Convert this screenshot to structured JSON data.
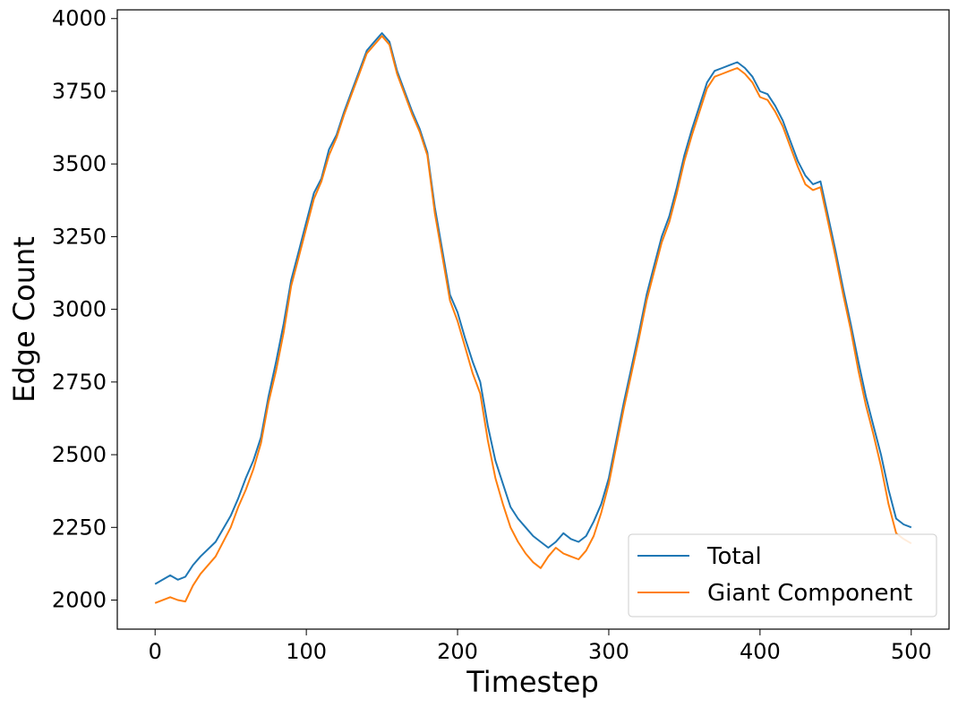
{
  "chart_data": {
    "type": "line",
    "title": "",
    "xlabel": "Timestep",
    "ylabel": "Edge Count",
    "xlim": [
      -25,
      525
    ],
    "ylim": [
      1900,
      4030
    ],
    "xticks": [
      0,
      100,
      200,
      300,
      400,
      500
    ],
    "yticks": [
      2000,
      2250,
      2500,
      2750,
      3000,
      3250,
      3500,
      3750,
      4000
    ],
    "grid": false,
    "legend": {
      "position": "bottom-right"
    },
    "series": [
      {
        "name": "Total",
        "color": "#1f77b4",
        "x": [
          0,
          10,
          15,
          20,
          25,
          30,
          40,
          50,
          55,
          60,
          65,
          70,
          75,
          80,
          85,
          90,
          95,
          100,
          105,
          110,
          115,
          120,
          125,
          130,
          135,
          140,
          145,
          150,
          155,
          160,
          165,
          170,
          175,
          180,
          185,
          190,
          195,
          200,
          205,
          210,
          215,
          220,
          225,
          230,
          235,
          240,
          245,
          250,
          255,
          260,
          265,
          270,
          275,
          280,
          285,
          290,
          295,
          300,
          305,
          310,
          315,
          320,
          325,
          330,
          335,
          340,
          345,
          350,
          355,
          360,
          365,
          370,
          375,
          380,
          385,
          390,
          395,
          400,
          405,
          410,
          415,
          420,
          425,
          430,
          435,
          440,
          445,
          450,
          455,
          460,
          465,
          470,
          475,
          480,
          485,
          490,
          495,
          500
        ],
        "values": [
          2055,
          2085,
          2070,
          2080,
          2120,
          2150,
          2200,
          2290,
          2350,
          2420,
          2480,
          2560,
          2700,
          2820,
          2950,
          3100,
          3200,
          3300,
          3400,
          3450,
          3550,
          3600,
          3680,
          3750,
          3820,
          3890,
          3920,
          3950,
          3920,
          3820,
          3750,
          3680,
          3620,
          3540,
          3350,
          3200,
          3050,
          2990,
          2900,
          2820,
          2750,
          2600,
          2480,
          2400,
          2320,
          2280,
          2250,
          2220,
          2200,
          2180,
          2200,
          2230,
          2210,
          2200,
          2220,
          2270,
          2330,
          2420,
          2550,
          2680,
          2800,
          2920,
          3050,
          3150,
          3250,
          3320,
          3420,
          3530,
          3620,
          3700,
          3780,
          3820,
          3830,
          3840,
          3850,
          3830,
          3800,
          3750,
          3740,
          3700,
          3650,
          3580,
          3510,
          3460,
          3430,
          3440,
          3320,
          3200,
          3070,
          2950,
          2820,
          2700,
          2600,
          2500,
          2380,
          2280,
          2260,
          2250
        ]
      },
      {
        "name": "Giant Component",
        "color": "#ff7f0e",
        "x": [
          0,
          10,
          15,
          20,
          25,
          30,
          40,
          50,
          55,
          60,
          65,
          70,
          75,
          80,
          85,
          90,
          95,
          100,
          105,
          110,
          115,
          120,
          125,
          130,
          135,
          140,
          145,
          150,
          155,
          160,
          165,
          170,
          175,
          180,
          185,
          190,
          195,
          200,
          205,
          210,
          215,
          220,
          225,
          230,
          235,
          240,
          245,
          250,
          255,
          260,
          265,
          270,
          275,
          280,
          285,
          290,
          295,
          300,
          305,
          310,
          315,
          320,
          325,
          330,
          335,
          340,
          345,
          350,
          355,
          360,
          365,
          370,
          375,
          380,
          385,
          390,
          395,
          400,
          405,
          410,
          415,
          420,
          425,
          430,
          435,
          440,
          445,
          450,
          455,
          460,
          465,
          470,
          475,
          480,
          485,
          490,
          495,
          500
        ],
        "values": [
          1990,
          2010,
          2000,
          1995,
          2050,
          2090,
          2150,
          2250,
          2320,
          2380,
          2450,
          2540,
          2680,
          2790,
          2920,
          3080,
          3180,
          3280,
          3380,
          3440,
          3530,
          3590,
          3670,
          3740,
          3810,
          3880,
          3910,
          3940,
          3910,
          3810,
          3740,
          3670,
          3610,
          3530,
          3330,
          3180,
          3030,
          2960,
          2870,
          2780,
          2710,
          2550,
          2420,
          2330,
          2250,
          2200,
          2160,
          2130,
          2110,
          2150,
          2180,
          2160,
          2150,
          2140,
          2170,
          2220,
          2300,
          2400,
          2530,
          2660,
          2780,
          2900,
          3030,
          3130,
          3230,
          3300,
          3400,
          3510,
          3600,
          3680,
          3760,
          3800,
          3810,
          3820,
          3830,
          3810,
          3780,
          3730,
          3720,
          3680,
          3630,
          3560,
          3490,
          3430,
          3410,
          3420,
          3300,
          3180,
          3050,
          2930,
          2790,
          2670,
          2570,
          2460,
          2330,
          2230,
          2210,
          2195
        ]
      }
    ]
  }
}
